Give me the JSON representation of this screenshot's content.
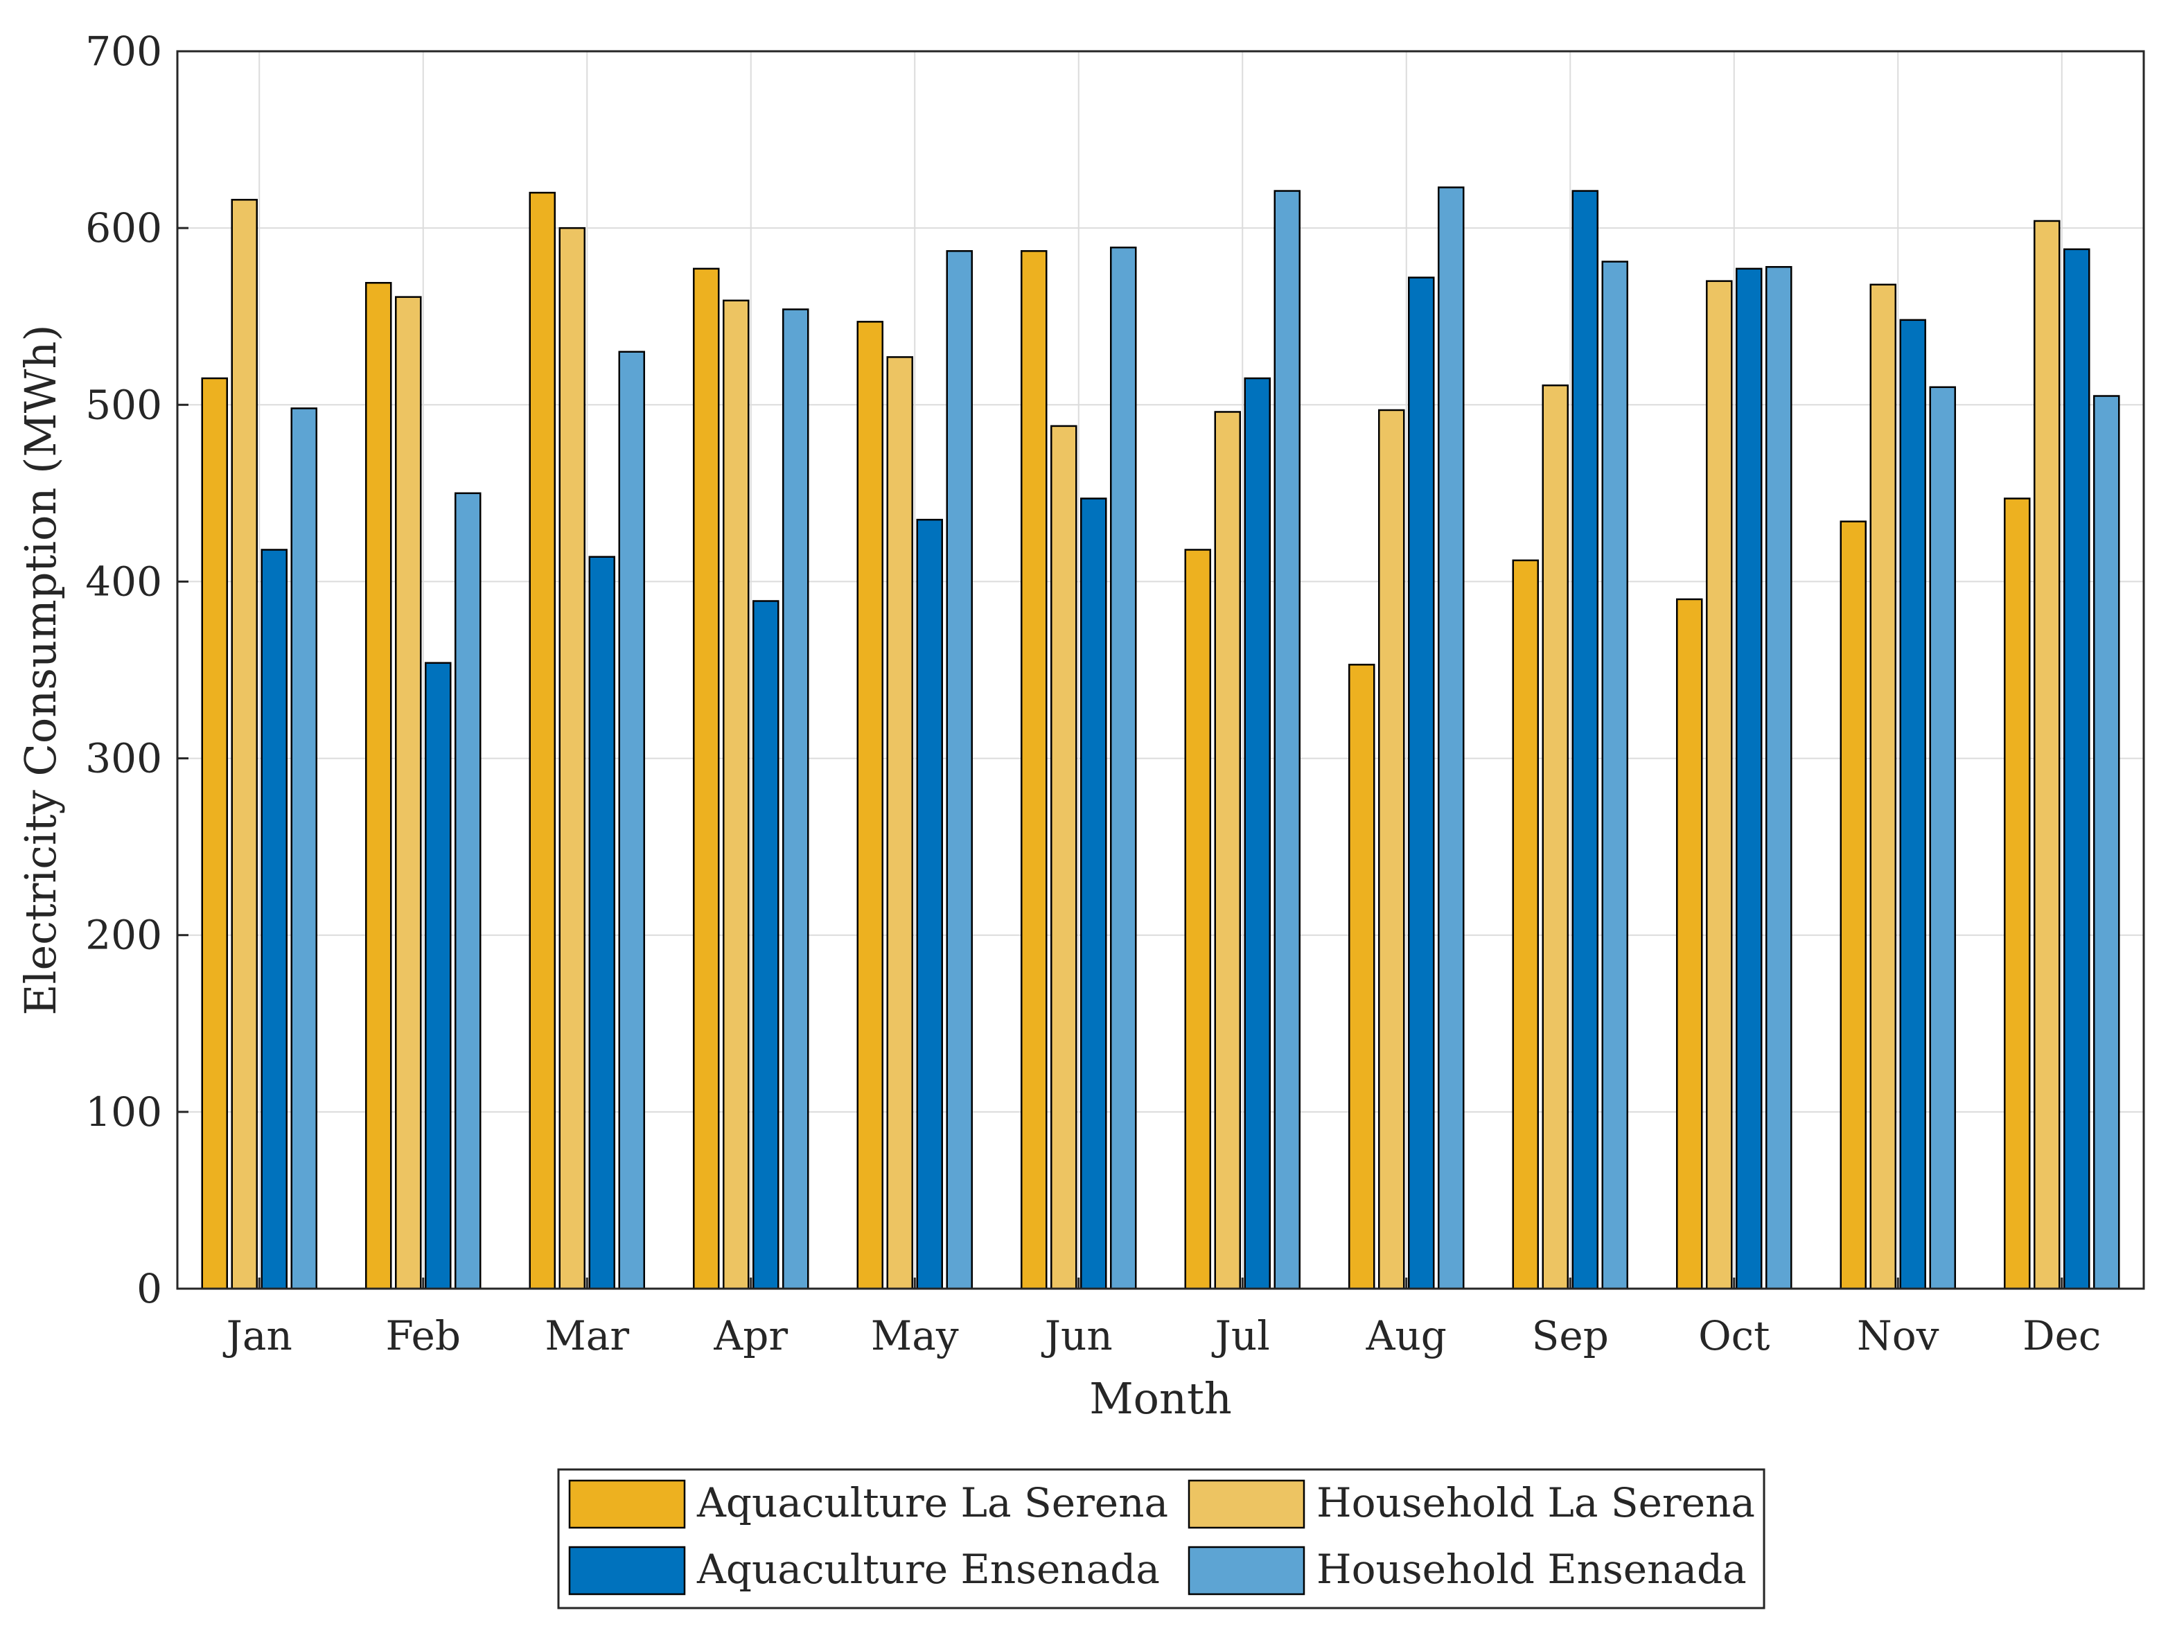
{
  "chart_data": {
    "type": "bar",
    "title": "",
    "xlabel": "Month",
    "ylabel": "Electricity Consumption (MWh)",
    "ylim": [
      0,
      700
    ],
    "yticks": [
      0,
      100,
      200,
      300,
      400,
      500,
      600,
      700
    ],
    "grid": true,
    "legend_position": "bottom-outside",
    "categories": [
      "Jan",
      "Feb",
      "Mar",
      "Apr",
      "May",
      "Jun",
      "Jul",
      "Aug",
      "Sep",
      "Oct",
      "Nov",
      "Dec"
    ],
    "series": [
      {
        "name": "Aquaculture La Serena",
        "color": "#EDB120",
        "values": [
          515,
          569,
          620,
          577,
          547,
          587,
          418,
          353,
          412,
          390,
          434,
          447
        ]
      },
      {
        "name": "Household La Serena",
        "color": "#EDC462",
        "values": [
          616,
          561,
          600,
          559,
          527,
          488,
          496,
          497,
          511,
          570,
          568,
          604
        ]
      },
      {
        "name": "Aquaculture Ensenada",
        "color": "#0072BD",
        "values": [
          418,
          354,
          414,
          389,
          435,
          447,
          515,
          572,
          621,
          577,
          548,
          588
        ]
      },
      {
        "name": "Household Ensenada",
        "color": "#5DA4D3",
        "values": [
          498,
          450,
          530,
          554,
          587,
          589,
          621,
          623,
          581,
          578,
          510,
          505
        ]
      }
    ]
  }
}
